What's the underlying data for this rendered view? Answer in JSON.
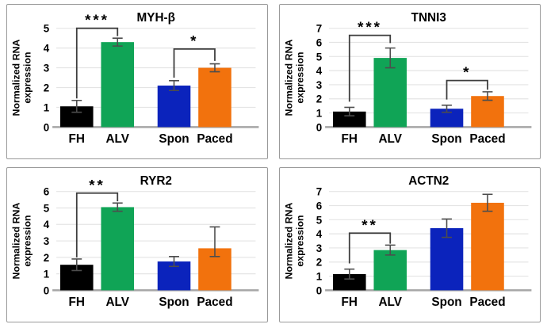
{
  "figure": {
    "description": "Four bar charts of normalized RNA expression",
    "panel_titles": [
      "MYH-β",
      "TNNI3",
      "RYR2",
      "ACTN2"
    ]
  },
  "colors": {
    "bar_fh": "#000000",
    "bar_alv": "#10a456",
    "bar_spon": "#0b23bc",
    "bar_paced": "#f2720d",
    "grid": "#e4e4e4",
    "baseline": "#a6a6a6",
    "error_bar": "#4d4d4d",
    "bracket": "#3d3d3d",
    "panel_border": "#9a9a9a",
    "text": "#000000"
  },
  "chart_data": [
    {
      "type": "bar",
      "title": "MYH-β",
      "ylabel": "Normalized RNA expression",
      "ylabel_lines": [
        "Normalized RNA",
        "expression"
      ],
      "categories": [
        "FH",
        "ALV",
        "Spon",
        "Paced"
      ],
      "values": [
        1.05,
        4.3,
        2.1,
        3.0
      ],
      "errors": [
        0.3,
        0.2,
        0.25,
        0.2
      ],
      "bar_colors": [
        "#000000",
        "#10a456",
        "#0b23bc",
        "#f2720d"
      ],
      "ylim": [
        0,
        5
      ],
      "yticks": [
        0,
        1,
        2,
        3,
        4,
        5
      ],
      "grid": true,
      "legend": "none",
      "significance": [
        {
          "from": 0,
          "to": 1,
          "label": "***",
          "y_start": 1.45,
          "y_top": 5.0,
          "y_end": 4.6
        },
        {
          "from": 2,
          "to": 3,
          "label": "*",
          "y_start": 2.5,
          "y_top": 3.95,
          "y_end": 3.35
        }
      ]
    },
    {
      "type": "bar",
      "title": "TNNI3",
      "ylabel": "Normalized RNA expression",
      "ylabel_lines": [
        "Normalized RNA",
        "expression"
      ],
      "categories": [
        "FH",
        "ALV",
        "Spon",
        "Paced"
      ],
      "values": [
        1.1,
        4.9,
        1.3,
        2.2
      ],
      "errors": [
        0.3,
        0.7,
        0.25,
        0.3
      ],
      "bar_colors": [
        "#000000",
        "#10a456",
        "#0b23bc",
        "#f2720d"
      ],
      "ylim": [
        0,
        7
      ],
      "yticks": [
        0,
        1,
        2,
        3,
        4,
        5,
        6,
        7
      ],
      "grid": true,
      "legend": "none",
      "significance": [
        {
          "from": 0,
          "to": 1,
          "label": "***",
          "y_start": 1.8,
          "y_top": 6.5,
          "y_end": 5.95
        },
        {
          "from": 2,
          "to": 3,
          "label": "*",
          "y_start": 1.95,
          "y_top": 3.3,
          "y_end": 2.65
        }
      ]
    },
    {
      "type": "bar",
      "title": "RYR2",
      "ylabel": "Normalized RNA expression",
      "ylabel_lines": [
        "Normalized RNA",
        "expression"
      ],
      "categories": [
        "FH",
        "ALV",
        "Spon",
        "Paced"
      ],
      "values": [
        1.55,
        5.05,
        1.75,
        2.55
      ],
      "errors": [
        0.35,
        0.25,
        0.3,
        1.3
      ],
      "errors_down": [
        null,
        null,
        null,
        0.5
      ],
      "bar_colors": [
        "#000000",
        "#10a456",
        "#0b23bc",
        "#f2720d"
      ],
      "ylim": [
        0,
        6
      ],
      "yticks": [
        0,
        1,
        2,
        3,
        4,
        5,
        6
      ],
      "grid": true,
      "legend": "none",
      "significance": [
        {
          "from": 0,
          "to": 1,
          "label": "**",
          "y_start": 2.0,
          "y_top": 5.9,
          "y_end": 5.4
        }
      ]
    },
    {
      "type": "bar",
      "title": "ACTN2",
      "ylabel": "Normalized RNA expression",
      "ylabel_lines": [
        "Normalized RNA",
        "expression"
      ],
      "categories": [
        "FH",
        "ALV",
        "Spon",
        "Paced"
      ],
      "values": [
        1.15,
        2.85,
        4.4,
        6.2
      ],
      "errors": [
        0.35,
        0.35,
        0.65,
        0.6
      ],
      "bar_colors": [
        "#000000",
        "#10a456",
        "#0b23bc",
        "#f2720d"
      ],
      "ylim": [
        0,
        7
      ],
      "yticks": [
        0,
        1,
        2,
        3,
        4,
        5,
        6,
        7
      ],
      "grid": true,
      "legend": "none",
      "significance": [
        {
          "from": 0,
          "to": 1,
          "label": "**",
          "y_start": 1.9,
          "y_top": 4.05,
          "y_end": 3.3
        }
      ]
    }
  ]
}
